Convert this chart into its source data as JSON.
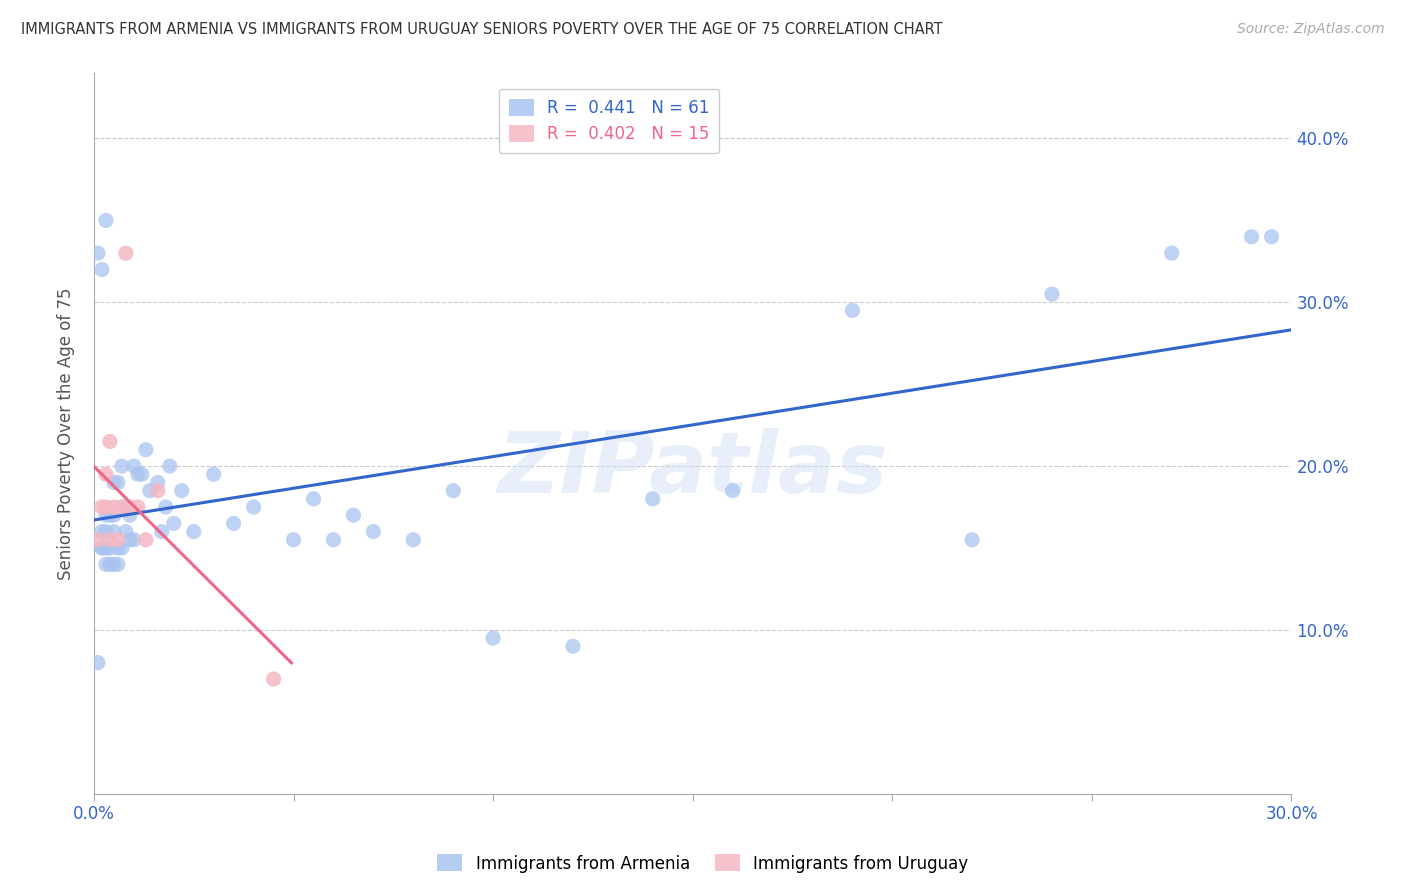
{
  "title": "IMMIGRANTS FROM ARMENIA VS IMMIGRANTS FROM URUGUAY SENIORS POVERTY OVER THE AGE OF 75 CORRELATION CHART",
  "source": "Source: ZipAtlas.com",
  "ylabel": "Seniors Poverty Over the Age of 75",
  "legend_armenia": "R =  0.441   N = 61",
  "legend_uruguay": "R =  0.402   N = 15",
  "legend_label_armenia": "Immigrants from Armenia",
  "legend_label_uruguay": "Immigrants from Uruguay",
  "armenia_color": "#a8c4f0",
  "uruguay_color": "#f5b8c4",
  "armenia_line_color": "#3366cc",
  "uruguay_line_color": "#ee6688",
  "watermark": "ZIPatlas",
  "armenia_x": [
    0.001,
    0.001,
    0.002,
    0.002,
    0.002,
    0.002,
    0.003,
    0.003,
    0.003,
    0.003,
    0.003,
    0.004,
    0.004,
    0.004,
    0.005,
    0.005,
    0.005,
    0.005,
    0.006,
    0.006,
    0.006,
    0.007,
    0.007,
    0.007,
    0.008,
    0.008,
    0.009,
    0.009,
    0.01,
    0.01,
    0.011,
    0.012,
    0.013,
    0.014,
    0.016,
    0.017,
    0.018,
    0.019,
    0.02,
    0.022,
    0.025,
    0.03,
    0.035,
    0.04,
    0.05,
    0.055,
    0.06,
    0.065,
    0.07,
    0.08,
    0.09,
    0.1,
    0.12,
    0.14,
    0.16,
    0.19,
    0.22,
    0.24,
    0.27,
    0.29,
    0.295
  ],
  "armenia_y": [
    0.08,
    0.33,
    0.15,
    0.15,
    0.16,
    0.32,
    0.14,
    0.15,
    0.16,
    0.17,
    0.35,
    0.14,
    0.15,
    0.17,
    0.14,
    0.16,
    0.17,
    0.19,
    0.14,
    0.15,
    0.19,
    0.15,
    0.175,
    0.2,
    0.16,
    0.175,
    0.155,
    0.17,
    0.155,
    0.2,
    0.195,
    0.195,
    0.21,
    0.185,
    0.19,
    0.16,
    0.175,
    0.2,
    0.165,
    0.185,
    0.16,
    0.195,
    0.165,
    0.175,
    0.155,
    0.18,
    0.155,
    0.17,
    0.16,
    0.155,
    0.185,
    0.095,
    0.09,
    0.18,
    0.185,
    0.295,
    0.155,
    0.305,
    0.33,
    0.34,
    0.34
  ],
  "uruguay_x": [
    0.001,
    0.002,
    0.003,
    0.003,
    0.004,
    0.004,
    0.005,
    0.006,
    0.007,
    0.008,
    0.009,
    0.011,
    0.013,
    0.016,
    0.045
  ],
  "uruguay_y": [
    0.155,
    0.175,
    0.175,
    0.195,
    0.155,
    0.215,
    0.175,
    0.155,
    0.175,
    0.33,
    0.175,
    0.175,
    0.155,
    0.185,
    0.07
  ],
  "xmin": 0.0,
  "xmax": 0.3,
  "ymin": 0.0,
  "ymax": 0.44,
  "right_yticks": [
    0.1,
    0.2,
    0.3,
    0.4
  ],
  "right_ytick_labels": [
    "10.0%",
    "20.0%",
    "30.0%",
    "40.0%"
  ]
}
